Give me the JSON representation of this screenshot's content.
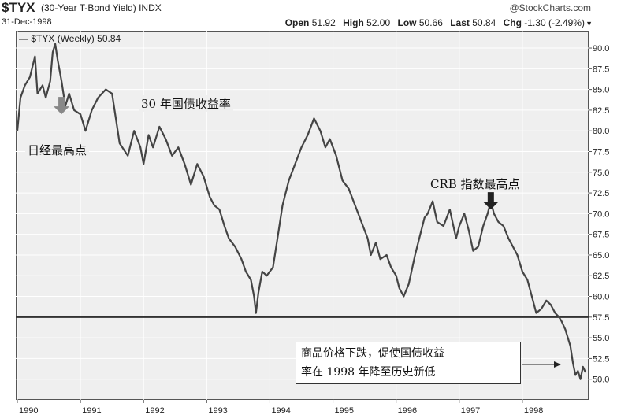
{
  "header": {
    "symbol": "$TYX",
    "name": "(30-Year T-Bond Yield) INDX",
    "date": "31-Dec-1998",
    "source": "@StockCharts.com",
    "quote": {
      "open_label": "Open",
      "open": "51.92",
      "high_label": "High",
      "high": "52.00",
      "low_label": "Low",
      "low": "50.66",
      "last_label": "Last",
      "last": "50.84",
      "chg_label": "Chg",
      "chg": "-1.30 (-2.49%)"
    }
  },
  "legend": "$TYX (Weekly) 50.84",
  "annotations": {
    "bond_label": "30 年国债收益率",
    "japan_peak": "日经最高点",
    "crb_peak": "CRB 指数最高点",
    "callout_line1": "商品价格下跌，促使国债收益",
    "callout_line2": "率在 1998 年降至历史新低"
  },
  "colors": {
    "line": "#444444",
    "hline": "#333333",
    "arrow_gray": "#888888",
    "arrow_dark": "#222222",
    "grid": "#ffffff"
  },
  "chart_data": {
    "type": "line",
    "title": "$TYX (30-Year T-Bond Yield) INDX",
    "series": [
      {
        "name": "$TYX (Weekly)",
        "x": [
          1990.0,
          1990.05,
          1990.12,
          1990.2,
          1990.28,
          1990.32,
          1990.4,
          1990.45,
          1990.52,
          1990.56,
          1990.6,
          1990.64,
          1990.7,
          1990.76,
          1990.82,
          1990.9,
          1991.0,
          1991.08,
          1991.18,
          1991.28,
          1991.4,
          1991.5,
          1991.55,
          1991.62,
          1991.75,
          1991.85,
          1991.95,
          1992.0,
          1992.08,
          1992.15,
          1992.25,
          1992.35,
          1992.45,
          1992.55,
          1992.65,
          1992.75,
          1992.85,
          1992.95,
          1993.05,
          1993.12,
          1993.2,
          1993.28,
          1993.35,
          1993.45,
          1993.55,
          1993.62,
          1993.7,
          1993.75,
          1993.78,
          1993.82,
          1993.88,
          1993.95,
          1994.05,
          1994.12,
          1994.2,
          1994.3,
          1994.4,
          1994.5,
          1994.6,
          1994.7,
          1994.8,
          1994.88,
          1994.95,
          1995.05,
          1995.15,
          1995.25,
          1995.35,
          1995.45,
          1995.55,
          1995.6,
          1995.68,
          1995.75,
          1995.85,
          1995.92,
          1996.0,
          1996.05,
          1996.12,
          1996.2,
          1996.3,
          1996.4,
          1996.45,
          1996.5,
          1996.58,
          1996.65,
          1996.75,
          1996.85,
          1996.95,
          1997.0,
          1997.08,
          1997.15,
          1997.22,
          1997.3,
          1997.38,
          1997.45,
          1997.5,
          1997.55,
          1997.62,
          1997.7,
          1997.78,
          1997.85,
          1997.92,
          1998.0,
          1998.08,
          1998.15,
          1998.22,
          1998.3,
          1998.38,
          1998.45,
          1998.52,
          1998.58,
          1998.62,
          1998.68,
          1998.72,
          1998.76,
          1998.8,
          1998.84,
          1998.88,
          1998.92,
          1998.96,
          1999.0
        ],
        "values": [
          80.0,
          84.0,
          85.5,
          86.5,
          89.0,
          84.5,
          85.5,
          84.0,
          86.0,
          89.5,
          90.5,
          88.5,
          86.0,
          83.0,
          84.5,
          82.5,
          82.0,
          80.0,
          82.5,
          84.0,
          85.0,
          84.5,
          82.0,
          78.5,
          77.0,
          80.0,
          78.0,
          76.0,
          79.5,
          78.0,
          80.5,
          79.0,
          77.0,
          78.0,
          76.0,
          73.5,
          76.0,
          74.5,
          72.0,
          71.0,
          70.5,
          68.5,
          67.0,
          66.0,
          64.5,
          63.0,
          62.0,
          60.0,
          58.0,
          60.5,
          63.0,
          62.5,
          63.5,
          67.0,
          71.0,
          74.0,
          76.0,
          78.0,
          79.5,
          81.5,
          80.0,
          78.0,
          79.0,
          77.0,
          74.0,
          73.0,
          71.0,
          69.0,
          67.0,
          65.0,
          66.5,
          64.5,
          65.0,
          63.5,
          62.5,
          61.0,
          60.0,
          61.5,
          65.0,
          68.0,
          69.5,
          70.0,
          71.5,
          69.0,
          68.5,
          70.5,
          67.0,
          68.5,
          70.0,
          68.0,
          65.5,
          66.0,
          68.5,
          70.0,
          71.5,
          70.0,
          69.0,
          68.5,
          67.0,
          66.0,
          65.0,
          63.0,
          62.0,
          60.0,
          58.0,
          58.5,
          59.5,
          59.0,
          58.0,
          57.5,
          57.0,
          56.0,
          55.0,
          54.0,
          52.0,
          50.5,
          51.0,
          50.0,
          51.5,
          50.84
        ]
      }
    ],
    "reference_line": 57.5,
    "xlim": [
      1990.0,
      1999.0
    ],
    "ylim": [
      47.5,
      92.0
    ],
    "yticks": [
      "90.0",
      "87.5",
      "85.0",
      "82.5",
      "80.0",
      "77.5",
      "75.0",
      "72.5",
      "70.0",
      "67.5",
      "65.0",
      "62.5",
      "60.0",
      "57.5",
      "55.0",
      "52.5",
      "50.0"
    ],
    "xticks": [
      "1990",
      "1991",
      "1992",
      "1993",
      "1994",
      "1995",
      "1996",
      "1997",
      "1998"
    ],
    "arrows": [
      {
        "label": "Japan peak",
        "x": 1990.7,
        "y": 82.0
      },
      {
        "label": "CRB peak",
        "x": 1997.5,
        "y": 70.5
      }
    ]
  }
}
